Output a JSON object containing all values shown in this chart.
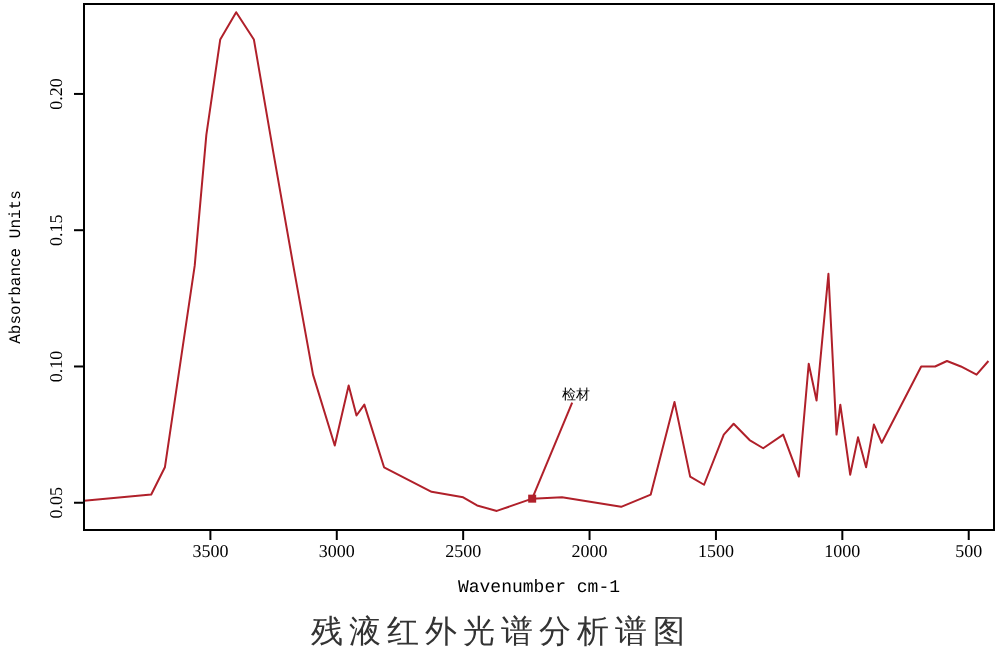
{
  "chart_data": {
    "type": "line",
    "xlabel": "Wavenumber cm-1",
    "ylabel": "Absorbance Units",
    "x": [
      4000,
      3734,
      3680,
      3562,
      3516,
      3461,
      3398,
      3328,
      3250,
      3172,
      3094,
      3008,
      2953,
      2922,
      2891,
      2813,
      2625,
      2500,
      2445,
      2367,
      2227,
      2109,
      1875,
      1758,
      1664,
      1602,
      1547,
      1469,
      1430,
      1367,
      1313,
      1234,
      1172,
      1133,
      1102,
      1055,
      1023,
      1008,
      969,
      938,
      906,
      875,
      844,
      688,
      633,
      586,
      531,
      469,
      422
    ],
    "series": [
      {
        "color": "#b0202a",
        "values": [
          0.0507,
          0.053,
          0.063,
          0.137,
          0.185,
          0.22,
          0.23,
          0.22,
          0.178,
          0.137,
          0.097,
          0.071,
          0.093,
          0.082,
          0.086,
          0.063,
          0.054,
          0.052,
          0.049,
          0.047,
          0.0515,
          0.052,
          0.0485,
          0.053,
          0.087,
          0.0596,
          0.0566,
          0.075,
          0.079,
          0.073,
          0.07,
          0.075,
          0.0596,
          0.101,
          0.0875,
          0.134,
          0.075,
          0.086,
          0.0603,
          0.074,
          0.063,
          0.0787,
          0.072,
          0.1,
          0.1,
          0.102,
          0.1,
          0.097,
          0.102
        ]
      }
    ],
    "xlim": [
      4000,
      400
    ],
    "xticks": [
      3500,
      3000,
      2500,
      2000,
      1500,
      1000,
      500
    ],
    "ylim": [
      0.04,
      0.233
    ],
    "yticks": [
      {
        "value": 0.05,
        "label": "0.05"
      },
      {
        "value": 0.1,
        "label": "0.10"
      },
      {
        "value": 0.15,
        "label": "0.15"
      },
      {
        "value": 0.2,
        "label": "0.20"
      }
    ],
    "grid": false,
    "marker": "none",
    "line_style": "solid",
    "annotations": [
      {
        "text": "检材",
        "x": 2227,
        "y": 0.0515
      },
      "残液红外光谱分析谱图"
    ]
  }
}
